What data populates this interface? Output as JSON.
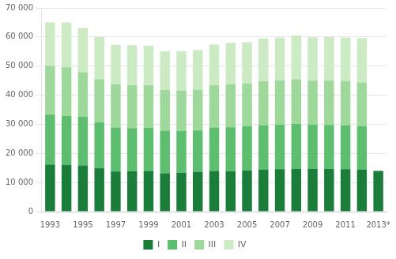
{
  "chart_data": {
    "type": "bar",
    "stacked": true,
    "categories": [
      "1993",
      null,
      "1995",
      null,
      "1997",
      null,
      "1999",
      null,
      "2001",
      null,
      "2003",
      null,
      "2005",
      null,
      "2007",
      null,
      "2009",
      null,
      "2011",
      null,
      "2013*"
    ],
    "series": [
      {
        "name": "I",
        "color": "#1a7d3a",
        "values": [
          16200,
          16000,
          15900,
          14900,
          13800,
          13900,
          14000,
          13200,
          13300,
          13700,
          14000,
          13900,
          14200,
          14500,
          14600,
          14700,
          14700,
          14700,
          14600,
          14500,
          14000
        ]
      },
      {
        "name": "II",
        "color": "#5cbe6e",
        "values": [
          17200,
          16900,
          16800,
          15800,
          15100,
          14800,
          14800,
          14600,
          14400,
          14200,
          14900,
          15100,
          15100,
          15200,
          15300,
          15400,
          15200,
          15100,
          15100,
          14800,
          0
        ]
      },
      {
        "name": "III",
        "color": "#9ed89a",
        "values": [
          16700,
          16700,
          15200,
          14800,
          14900,
          14700,
          14600,
          14000,
          13900,
          14000,
          14500,
          14800,
          14700,
          15100,
          15200,
          15400,
          15100,
          15200,
          15200,
          15100,
          0
        ]
      },
      {
        "name": "IV",
        "color": "#ccebc5",
        "values": [
          14900,
          15400,
          15200,
          14500,
          13500,
          13800,
          13600,
          13300,
          13500,
          13600,
          14000,
          14200,
          14200,
          14700,
          14700,
          15000,
          14900,
          15000,
          14900,
          15200,
          0
        ]
      }
    ],
    "ylim": [
      0,
      70000
    ],
    "yticks": [
      0,
      {
        "value": 10000,
        "label": "10 000"
      },
      {
        "value": 20000,
        "label": "20 000"
      },
      {
        "value": 30000,
        "label": "30 000"
      },
      {
        "value": 40000,
        "label": "40 000"
      },
      {
        "value": 50000,
        "label": "50 000"
      },
      {
        "value": 60000,
        "label": "60 000"
      },
      {
        "value": 70000,
        "label": "70 000"
      }
    ],
    "grid": true,
    "legend": "bottom"
  }
}
